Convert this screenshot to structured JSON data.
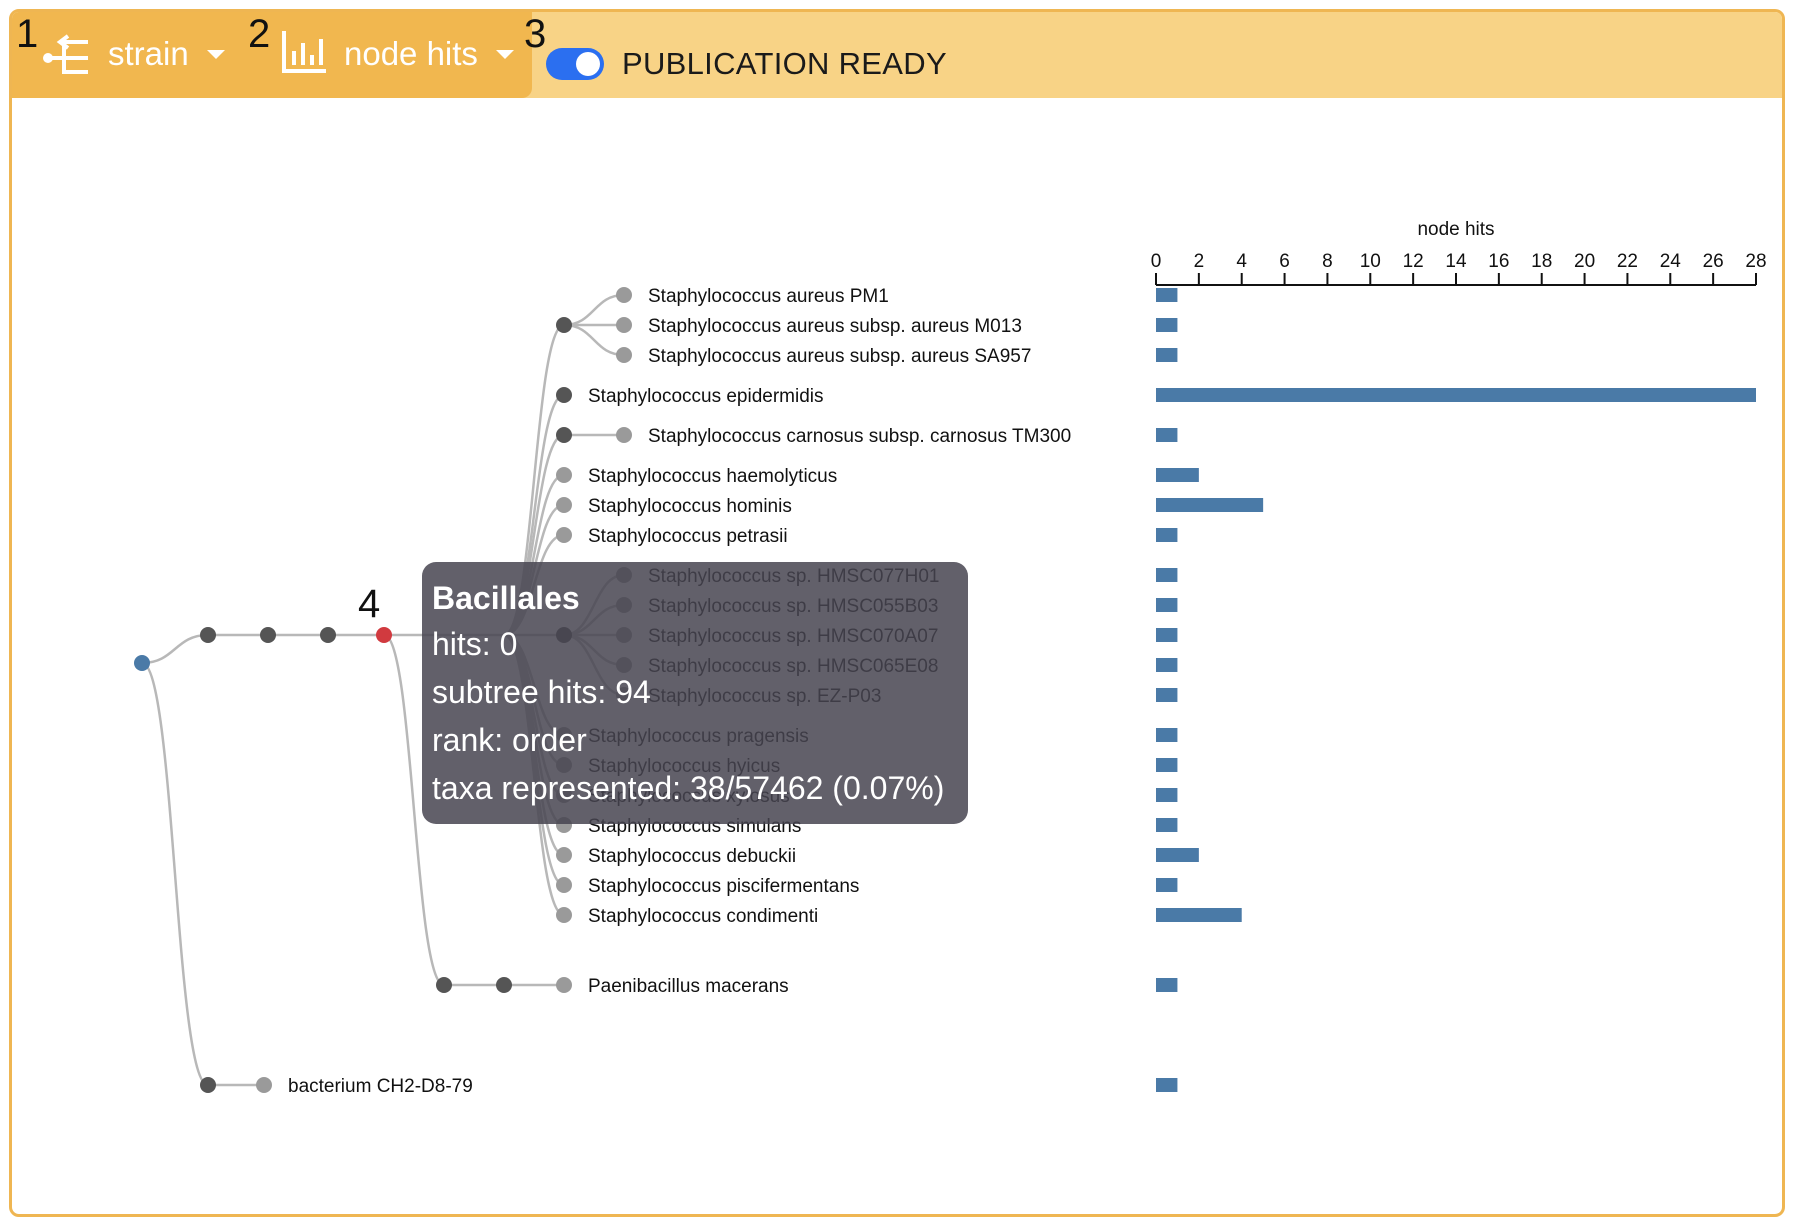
{
  "toolbar": {
    "markers": [
      "1",
      "2",
      "3"
    ],
    "rank_select": {
      "label": "strain",
      "icon": "tree-branch-icon"
    },
    "metric_select": {
      "label": "node hits",
      "icon": "bar-chart-icon"
    },
    "publication_toggle": {
      "label": "PUBLICATION READY",
      "on": true
    }
  },
  "colors": {
    "header_bg": "#f8d386",
    "toolbar_bg": "#f1b74f",
    "toggle_on": "#2b6ff0",
    "bar": "#4a7aa7",
    "root_node": "#4a7aa7",
    "selected_node": "#d13a3f",
    "internal_node": "#555555",
    "leaf_node": "#9a9a9a"
  },
  "tree": {
    "selected_marker": "4",
    "leaves": [
      "Staphylococcus aureus PM1",
      "Staphylococcus aureus subsp. aureus M013",
      "Staphylococcus aureus subsp. aureus SA957",
      "Staphylococcus epidermidis",
      "Staphylococcus carnosus subsp. carnosus TM300",
      "Staphylococcus haemolyticus",
      "Staphylococcus hominis",
      "Staphylococcus petrasii",
      "Staphylococcus sp. HMSC077H01",
      "Staphylococcus sp. HMSC055B03",
      "Staphylococcus sp. HMSC070A07",
      "Staphylococcus sp. HMSC065E08",
      "Staphylococcus sp. EZ-P03",
      "Staphylococcus pragensis",
      "Staphylococcus hyicus",
      "Staphylococcus xylosus",
      "Staphylococcus simulans",
      "Staphylococcus debuckii",
      "Staphylococcus piscifermentans",
      "Staphylococcus condimenti",
      "Paenibacillus macerans",
      "bacterium CH2-D8-79"
    ]
  },
  "tooltip": {
    "title": "Bacillales",
    "hits": "hits: 0",
    "subtree_hits": "subtree hits: 94",
    "rank": "rank: order",
    "taxa": "taxa represented: 38/57462 (0.07%)"
  },
  "chart_data": {
    "type": "bar",
    "orientation": "horizontal",
    "title": "node hits",
    "xlim": [
      0,
      28
    ],
    "ticks": [
      0,
      2,
      4,
      6,
      8,
      10,
      12,
      14,
      16,
      18,
      20,
      22,
      24,
      26,
      28
    ],
    "categories": [
      "Staphylococcus aureus PM1",
      "Staphylococcus aureus subsp. aureus M013",
      "Staphylococcus aureus subsp. aureus SA957",
      "Staphylococcus epidermidis",
      "Staphylococcus carnosus subsp. carnosus TM300",
      "Staphylococcus haemolyticus",
      "Staphylococcus hominis",
      "Staphylococcus petrasii",
      "Staphylococcus sp. HMSC077H01",
      "Staphylococcus sp. HMSC055B03",
      "Staphylococcus sp. HMSC070A07",
      "Staphylococcus sp. HMSC065E08",
      "Staphylococcus sp. EZ-P03",
      "Staphylococcus pragensis",
      "Staphylococcus hyicus",
      "Staphylococcus xylosus",
      "Staphylococcus simulans",
      "Staphylococcus debuckii",
      "Staphylococcus piscifermentans",
      "Staphylococcus condimenti",
      "Paenibacillus macerans",
      "bacterium CH2-D8-79"
    ],
    "values": [
      1,
      1,
      1,
      28,
      1,
      2,
      5,
      1,
      1,
      1,
      1,
      1,
      1,
      1,
      1,
      1,
      1,
      2,
      1,
      4,
      1,
      1
    ]
  }
}
